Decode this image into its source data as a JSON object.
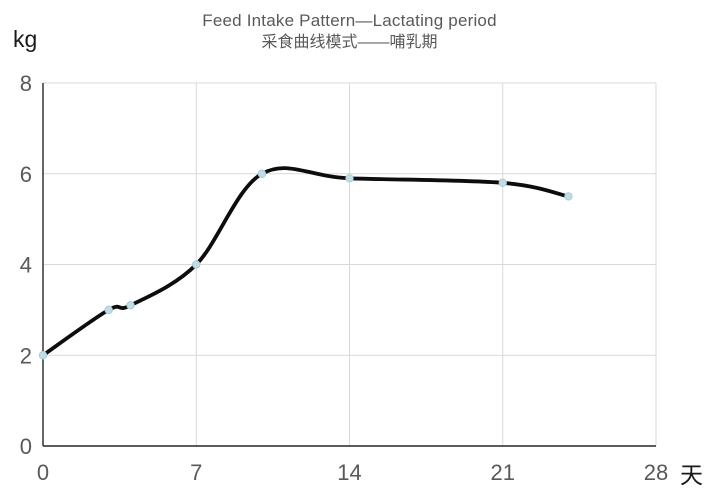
{
  "title": {
    "line1": "Feed Intake Pattern—Lactating period",
    "line2": "采食曲线模式——哺乳期"
  },
  "chart_data": {
    "type": "line",
    "title": "Feed Intake Pattern—Lactating period",
    "subtitle": "采食曲线模式——哺乳期",
    "ylabel": "kg",
    "xlabel": "天",
    "xlim": [
      0,
      28
    ],
    "ylim": [
      0,
      8
    ],
    "x_ticks": [
      0,
      7,
      14,
      21,
      28
    ],
    "y_ticks": [
      0,
      2,
      4,
      6,
      8
    ],
    "grid": true,
    "legend": "none",
    "series": [
      {
        "name": "feed-intake-lactating",
        "points": [
          [
            0,
            2
          ],
          [
            3,
            3
          ],
          [
            4,
            3.1
          ],
          [
            7,
            4
          ],
          [
            10,
            6
          ],
          [
            14,
            5.9
          ],
          [
            21,
            5.8
          ],
          [
            24,
            5.5
          ]
        ],
        "line_color": "#0d0d0d",
        "marker_color": "#c3dde6",
        "marker_edge_color": "#a5ccd8"
      }
    ],
    "colors": {
      "gridline": "#d9d9d9",
      "axis": "#262626",
      "tick_label": "#595959",
      "title_text": "#595959",
      "unit_label": "#1a1a1a",
      "background": "#ffffff"
    }
  }
}
